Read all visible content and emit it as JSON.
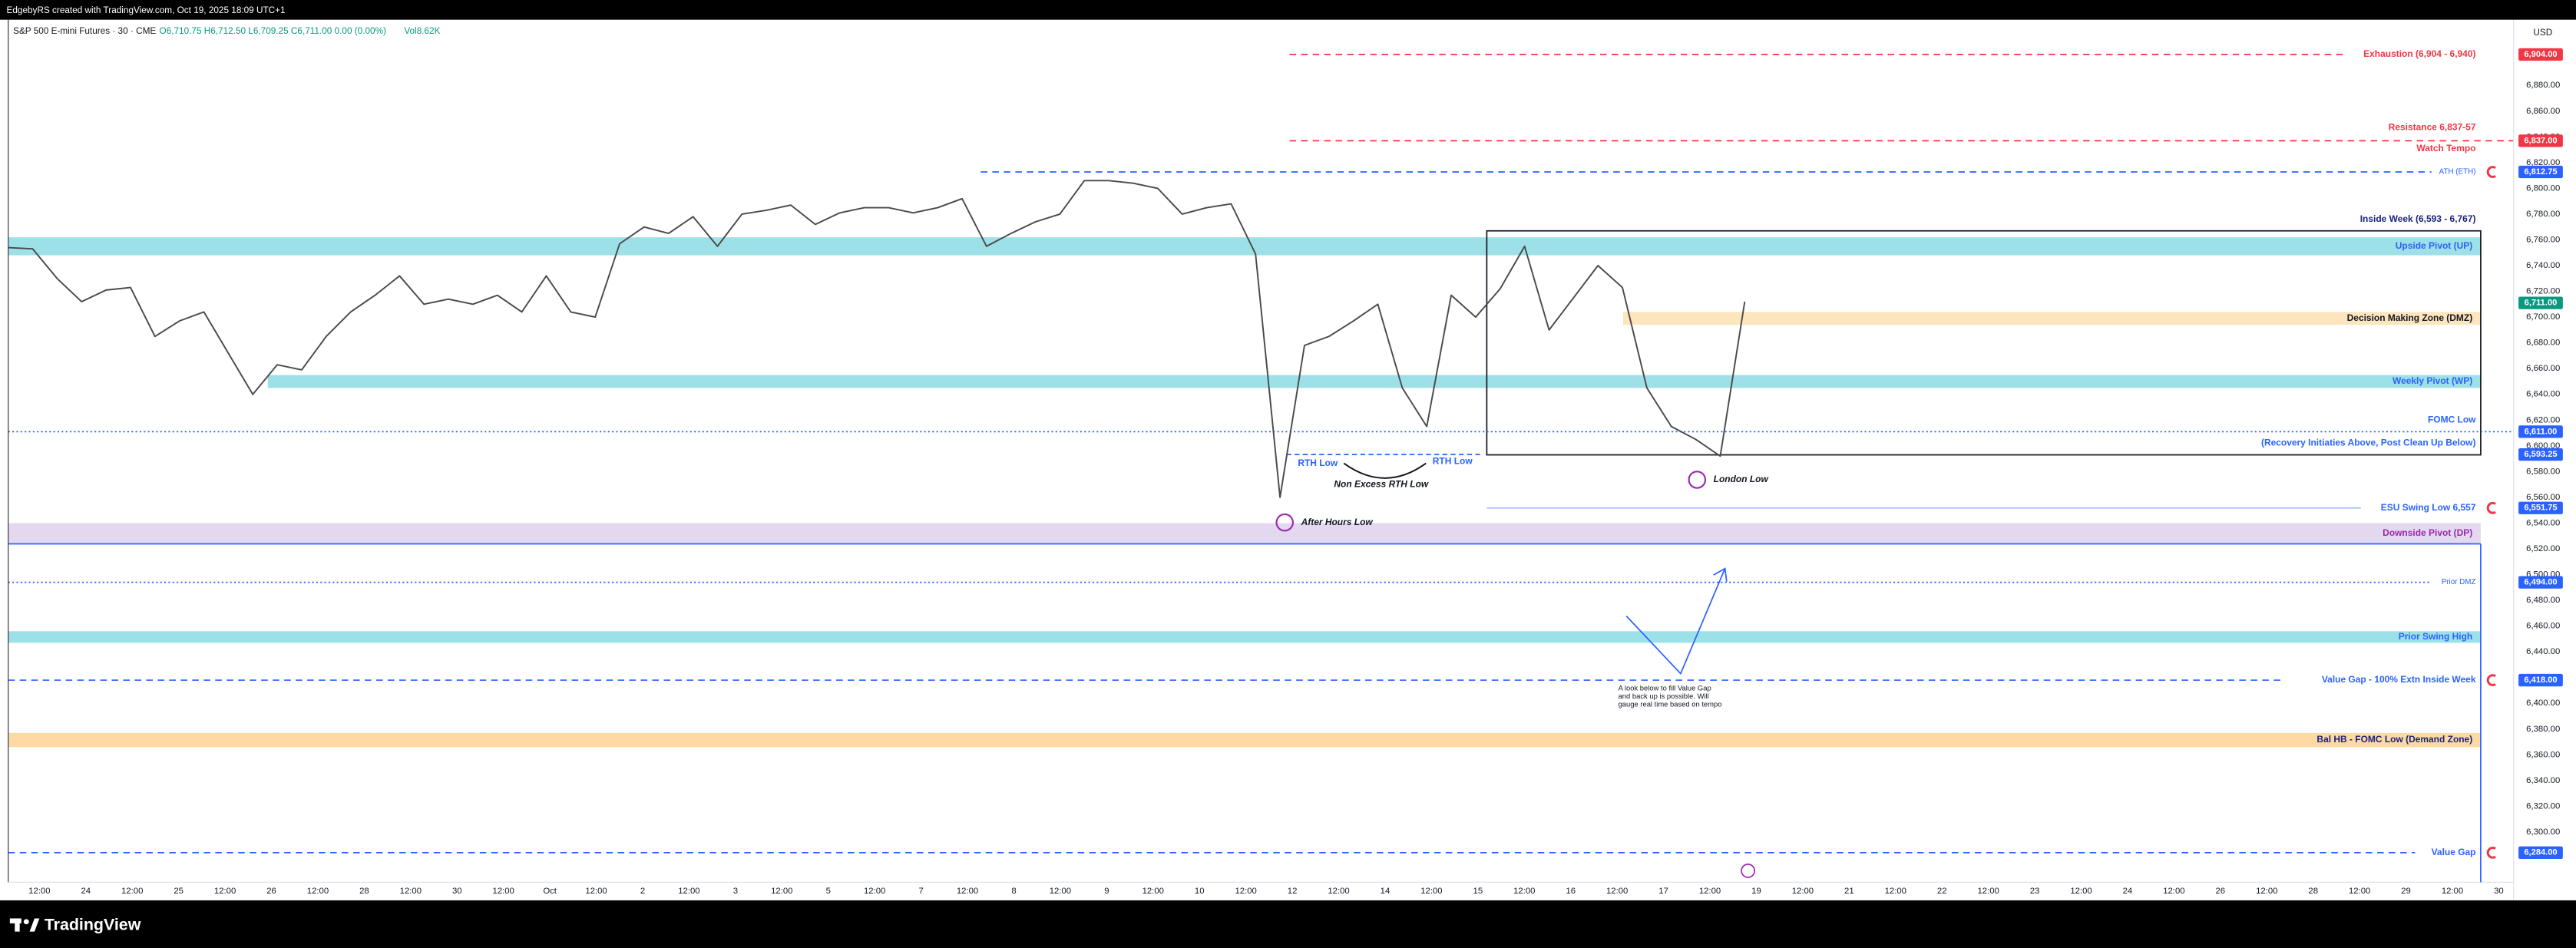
{
  "header": {
    "credit": "EdgebyRS created with TradingView.com, Oct 19, 2025 18:09 UTC+1",
    "symbol": "S&P 500 E-mini Futures · 30 · CME",
    "ohlc": "O6,710.75 H6,712.50 L6,709.25 C6,711.00 0.00 (0.00%)",
    "volume": "Vol8.62K",
    "currency": "USD"
  },
  "chart_data": {
    "type": "line",
    "color": "#4a4a4a",
    "values": [
      6754,
      6753,
      6730,
      6712,
      6721,
      6723,
      6685,
      6697,
      6704,
      6672,
      6640,
      6663,
      6659,
      6685,
      6704,
      6717,
      6732,
      6710,
      6714,
      6710,
      6717,
      6704,
      6732,
      6704,
      6700,
      6757,
      6770,
      6765,
      6778,
      6755,
      6780,
      6783,
      6787,
      6772,
      6781,
      6785,
      6785,
      6781,
      6785,
      6792,
      6755,
      6765,
      6774,
      6780,
      6806,
      6806,
      6804,
      6800,
      6780,
      6785,
      6788,
      6749,
      6560,
      6678,
      6685,
      6697,
      6710,
      6645,
      6615,
      6717,
      6700,
      6722,
      6755,
      6690,
      6715,
      6740,
      6723,
      6645,
      6615,
      6605,
      6592,
      6712
    ],
    "ylim": [
      6261,
      6931
    ],
    "yticks": [
      {
        "value": 6880,
        "label": "6,880.00"
      },
      {
        "value": 6860,
        "label": "6,860.00"
      },
      {
        "value": 6840,
        "label": "6,840.00"
      },
      {
        "value": 6820,
        "label": "6,820.00"
      },
      {
        "value": 6800,
        "label": "6,800.00"
      },
      {
        "value": 6780,
        "label": "6,780.00"
      },
      {
        "value": 6760,
        "label": "6,760.00"
      },
      {
        "value": 6740,
        "label": "6,740.00"
      },
      {
        "value": 6720,
        "label": "6,720.00"
      },
      {
        "value": 6700,
        "label": "6,700.00"
      },
      {
        "value": 6680,
        "label": "6,680.00"
      },
      {
        "value": 6660,
        "label": "6,660.00"
      },
      {
        "value": 6640,
        "label": "6,640.00"
      },
      {
        "value": 6620,
        "label": "6,620.00"
      },
      {
        "value": 6600,
        "label": "6,600.00"
      },
      {
        "value": 6580,
        "label": "6,580.00"
      },
      {
        "value": 6560,
        "label": "6,560.00"
      },
      {
        "value": 6540,
        "label": "6,540.00"
      },
      {
        "value": 6520,
        "label": "6,520.00"
      },
      {
        "value": 6500,
        "label": "6,500.00"
      },
      {
        "value": 6480,
        "label": "6,480.00"
      },
      {
        "value": 6460,
        "label": "6,460.00"
      },
      {
        "value": 6440,
        "label": "6,440.00"
      },
      {
        "value": 6420,
        "label": "6,420.00"
      },
      {
        "value": 6400,
        "label": "6,400.00"
      },
      {
        "value": 6380,
        "label": "6,380.00"
      },
      {
        "value": 6360,
        "label": "6,360.00"
      },
      {
        "value": 6340,
        "label": "6,340.00"
      },
      {
        "value": 6320,
        "label": "6,320.00"
      },
      {
        "value": 6300,
        "label": "6,300.00"
      }
    ],
    "x_labels": [
      "12:00",
      "24",
      "12:00",
      "25",
      "12:00",
      "26",
      "12:00",
      "28",
      "12:00",
      "30",
      "12:00",
      "Oct",
      "12:00",
      "2",
      "12:00",
      "3",
      "12:00",
      "5",
      "12:00",
      "7",
      "12:00",
      "8",
      "12:00",
      "9",
      "12:00",
      "10",
      "12:00",
      "12",
      "12:00",
      "14",
      "12:00",
      "15",
      "12:00",
      "16",
      "12:00",
      "17",
      "12:00",
      "19",
      "12:00",
      "21",
      "12:00",
      "22",
      "12:00",
      "23",
      "12:00",
      "24",
      "12:00",
      "26",
      "12:00",
      "28",
      "12:00",
      "29",
      "12:00",
      "30"
    ],
    "levels": [
      {
        "value": 6904,
        "tag": "6,904.00",
        "color": "#f23645",
        "labels": [
          "Exhaustion (6,904 - 6,940)"
        ]
      },
      {
        "value": 6837,
        "tag": "6,837.00",
        "color": "#f23645",
        "labels": [
          "Resistance 6,837-57",
          "Watch Tempo"
        ]
      },
      {
        "value": 6812.75,
        "tag": "6,812.75",
        "color": "#2962ff",
        "labels": [
          "ATH (ETH)"
        ]
      },
      {
        "value": 6711,
        "tag": "6,711.00",
        "color": "#089981",
        "labels": []
      },
      {
        "value": 6611,
        "tag": "6,611.00",
        "color": "#2962ff",
        "labels": [
          "FOMC Low",
          "(Recovery Initiaties Above, Post Clean Up Below)"
        ]
      },
      {
        "value": 6593.25,
        "tag": "6,593.25",
        "color": "#2962ff",
        "labels": []
      },
      {
        "value": 6551.75,
        "tag": "6,551.75",
        "color": "#2962ff",
        "labels": [
          "ESU Swing Low 6,557"
        ]
      },
      {
        "value": 6494,
        "tag": "6,494.00",
        "color": "#2962ff",
        "labels": [
          "Prior DMZ"
        ]
      },
      {
        "value": 6418,
        "tag": "6,418.00",
        "color": "#2962ff",
        "labels": [
          "Value Gap - 100% Extn Inside Week"
        ]
      },
      {
        "value": 6284,
        "tag": "6,284.00",
        "color": "#2962ff",
        "labels": [
          "Value Gap"
        ]
      }
    ],
    "zones": [
      {
        "label": "Upside Pivot (UP)",
        "low": 6748,
        "high": 6762,
        "color": "#9ee0e8",
        "label_color": "#2962ff"
      },
      {
        "label": "Decision Making Zone (DMZ)",
        "low": 6694,
        "high": 6704,
        "color": "#fde5bd",
        "label_color": "#131722"
      },
      {
        "label": "Weekly Pivot (WP)",
        "low": 6645,
        "high": 6655,
        "color": "#9ee0e8",
        "label_color": "#2962ff"
      },
      {
        "label": "Downside Pivot (DP)",
        "low": 6524,
        "high": 6540,
        "color": "#e3d8ef",
        "label_color": "#9c27b0"
      },
      {
        "label": "Prior Swing High",
        "low": 6447,
        "high": 6456,
        "color": "#9ee0e8",
        "label_color": "#2962ff"
      },
      {
        "label": "Bal HB - FOMC Low (Demand Zone)",
        "low": 6366,
        "high": 6377,
        "color": "#fdd9a3",
        "label_color": "#1a237e"
      }
    ],
    "box": {
      "label": "Inside Week (6,593 - 6,767)",
      "low": 6593,
      "high": 6767
    },
    "annotations": [
      "RTH Low",
      "RTH Low",
      "Non Excess RTH Low",
      "London Low",
      "After Hours Low"
    ],
    "note": [
      "A look below to fill Value Gap",
      "and back up is possible. Will",
      "gauge real time based on tempo"
    ]
  },
  "footer": {
    "brand": "TradingView"
  }
}
